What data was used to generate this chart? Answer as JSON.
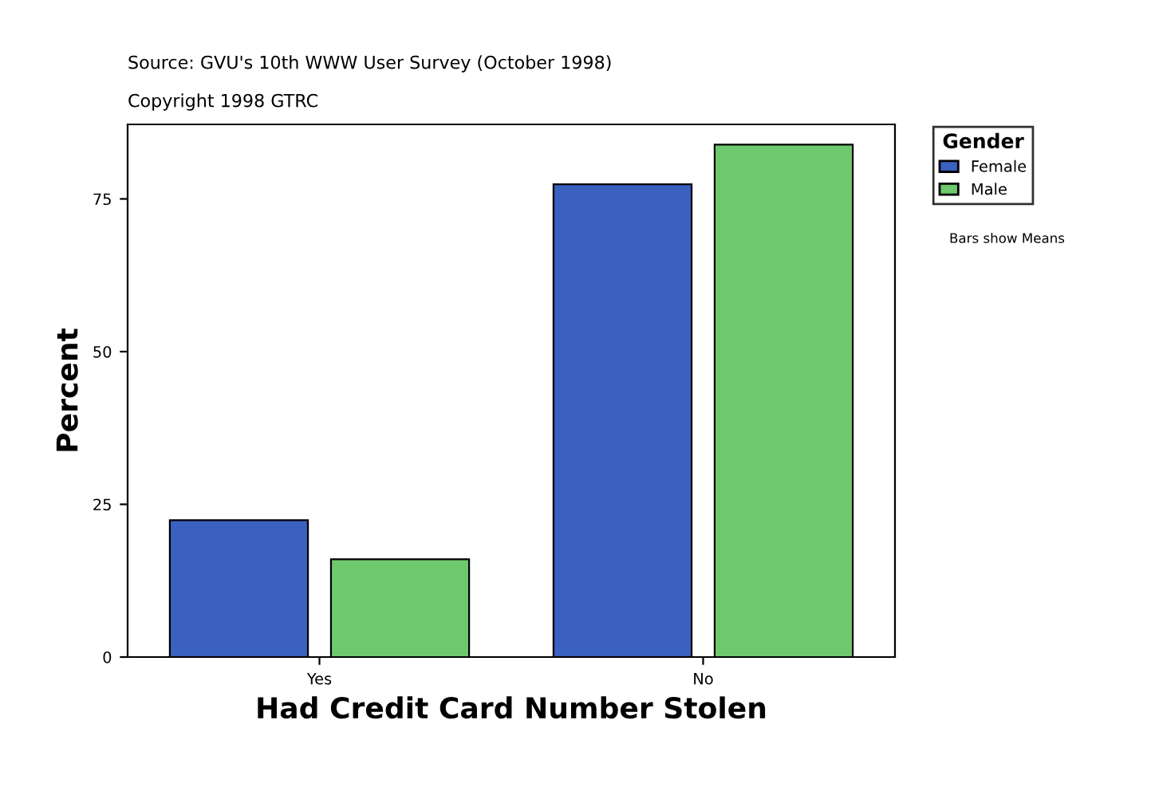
{
  "chart_data": {
    "type": "bar",
    "title": "Source: GVU's 10th WWW User Survey (October 1998)",
    "subtitle": "Copyright 1998 GTRC",
    "xlabel": "Had Credit Card Number Stolen",
    "ylabel": "Percent",
    "legend_title": "Gender",
    "annotations": [
      "Bars show Means"
    ],
    "categories": [
      "Yes",
      "No"
    ],
    "series": [
      {
        "name": "Female",
        "color": "#3a60c0",
        "values": [
          22.4,
          77.4
        ]
      },
      {
        "name": "Male",
        "color": "#6ec86e",
        "values": [
          16.0,
          83.9
        ]
      }
    ],
    "ylim": [
      0,
      87.2
    ],
    "yticks": [
      0,
      25,
      50,
      75
    ],
    "grid": false,
    "legend": "top right"
  }
}
